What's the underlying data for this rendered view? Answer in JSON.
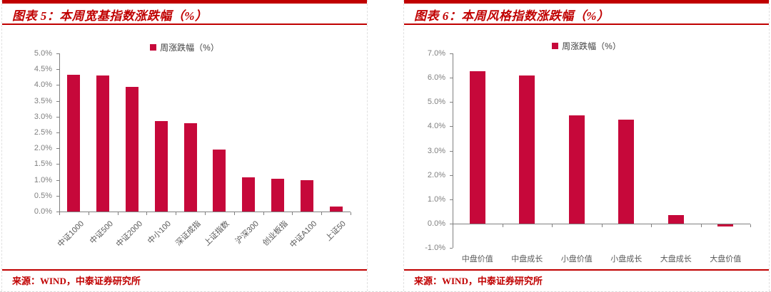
{
  "colors": {
    "accent_red": "#C00000",
    "bar_color": "#C6083A",
    "axis_gray": "#808080",
    "label_gray": "#595959"
  },
  "panels": [
    {
      "source": "来源：WIND，中泰证券研究所"
    },
    {
      "source": "来源：WIND，中泰证券研究所"
    }
  ],
  "chart_data": [
    {
      "type": "bar",
      "title": "图表 5：本周宽基指数涨跌幅（%）",
      "legend": "周涨跌幅（%）",
      "legend_position": "top",
      "grid": false,
      "categories": [
        "中证1000",
        "中证500",
        "中证2000",
        "中小100",
        "深证成指",
        "上证指数",
        "沪深300",
        "创业板指",
        "中证A100",
        "上证50"
      ],
      "values": [
        4.33,
        4.31,
        3.95,
        2.86,
        2.8,
        1.97,
        1.07,
        1.04,
        1.0,
        0.15
      ],
      "ylim": [
        0,
        5
      ],
      "ystep": 0.5,
      "y_tick_labels": [
        "5.0%",
        "4.5%",
        "4.0%",
        "3.5%",
        "3.0%",
        "2.5%",
        "2.0%",
        "1.5%",
        "1.0%",
        "0.5%",
        "0.0%"
      ],
      "bar_color": "#C6083A",
      "x_label_rotation": -45
    },
    {
      "type": "bar",
      "title": "图表 6：本周风格指数涨跌幅（%）",
      "legend": "周涨跌幅（%）",
      "legend_position": "top",
      "grid": false,
      "categories": [
        "中盘价值",
        "中盘成长",
        "小盘价值",
        "小盘成长",
        "大盘成长",
        "大盘价值"
      ],
      "values": [
        6.28,
        6.1,
        4.45,
        4.28,
        0.35,
        -0.1
      ],
      "ylim": [
        -1,
        7
      ],
      "ystep": 1.0,
      "y_tick_labels": [
        "7.0%",
        "6.0%",
        "5.0%",
        "4.0%",
        "3.0%",
        "2.0%",
        "1.0%",
        "0.0%",
        "-1.0%"
      ],
      "bar_color": "#C6083A",
      "x_label_rotation": 0
    }
  ]
}
